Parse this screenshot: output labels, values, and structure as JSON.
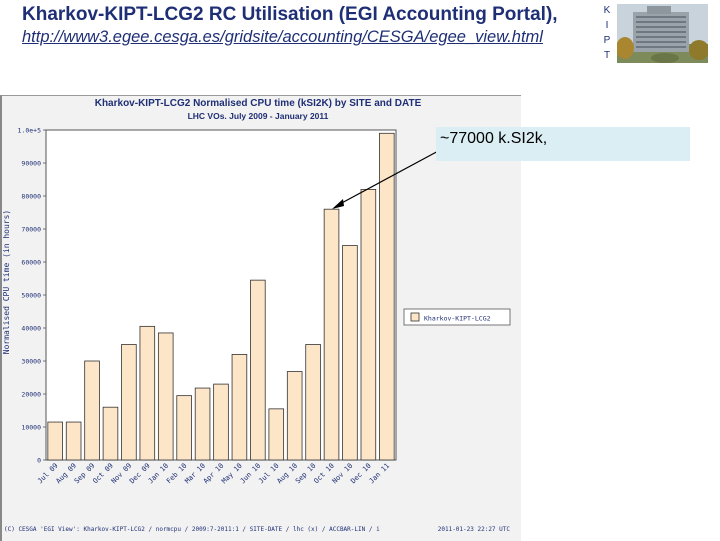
{
  "slide": {
    "title": "Kharkov-KIPT-LCG2 RC Utilisation (EGI Accounting Portal),",
    "url": "http://www3.egee.cesga.es/gridsite/accounting/CESGA/egee_view.html",
    "logo_letters": [
      "K",
      "I",
      "P",
      "T"
    ]
  },
  "callout": {
    "text": "~77000 k.SI2k,"
  },
  "footer": {
    "left": "(C) CESGA 'EGI View': Kharkov-KIPT-LCG2 / normcpu / 2009:7-2011:1 / SITE-DATE / lhc (x) / ACCBAR-LIN / i",
    "right": "2011-01-23 22:27 UTC"
  },
  "chart_data": {
    "type": "bar",
    "title": "Kharkov-KIPT-LCG2 Normalised CPU time (kSI2K) by SITE and DATE",
    "subtitle": "LHC VOs. July 2009 - January 2011",
    "ylabel": "Normalised CPU time (in hours)",
    "xlabel": "",
    "ylim": [
      0,
      100000
    ],
    "yticks": [
      0,
      10000,
      20000,
      30000,
      40000,
      50000,
      60000,
      70000,
      80000,
      90000,
      100000
    ],
    "ytick_labels": [
      "0",
      "10000",
      "20000",
      "30000",
      "40000",
      "50000",
      "60000",
      "70000",
      "80000",
      "90000",
      "1.0e+5"
    ],
    "categories": [
      "Jul 09",
      "Aug 09",
      "Sep 09",
      "Oct 09",
      "Nov 09",
      "Dec 09",
      "Jan 10",
      "Feb 10",
      "Mar 10",
      "Apr 10",
      "May 10",
      "Jun 10",
      "Jul 10",
      "Aug 10",
      "Sep 10",
      "Oct 10",
      "Nov 10",
      "Dec 10",
      "Jan 11"
    ],
    "series": [
      {
        "name": "Kharkov-KIPT-LCG2",
        "values": [
          11500,
          11500,
          30000,
          16000,
          35000,
          40500,
          38500,
          19500,
          21800,
          23000,
          32000,
          54500,
          15500,
          26800,
          35000,
          76000,
          65000,
          82000,
          99000
        ]
      }
    ],
    "legend_position": "right",
    "grid": false,
    "colors": {
      "bar": "#fde5c8",
      "bar_edge": "#333333",
      "background": "#f2f2f2",
      "plot": "#ffffff",
      "title": "#1f2f75"
    }
  }
}
